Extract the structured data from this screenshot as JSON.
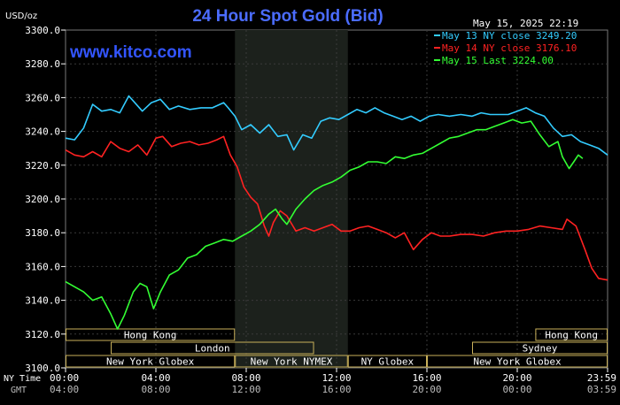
{
  "chart_data": {
    "type": "line",
    "title": "24 Hour Spot Gold (Bid)",
    "ylabel": "USD/oz",
    "timestamp": "May 15, 2025 22:19",
    "watermark": "www.kitco.com",
    "ylim": [
      3100,
      3300
    ],
    "yticks": [
      "3300.0",
      "3280.0",
      "3260.0",
      "3240.0",
      "3220.0",
      "3200.0",
      "3180.0",
      "3160.0",
      "3140.0",
      "3120.0",
      "3100.0"
    ],
    "xlim": [
      0,
      24
    ],
    "ny_time_label": "NY Time",
    "gmt_label": "GMT",
    "xticks_ny": [
      "00:00",
      "04:00",
      "08:00",
      "12:00",
      "16:00",
      "20:00",
      "23:59"
    ],
    "xticks_gmt": [
      "04:00",
      "08:00",
      "12:00",
      "16:00",
      "20:00",
      "00:00",
      "03:59"
    ],
    "shaded_session_hours": [
      7.5,
      12.5
    ],
    "legend_position": "top-right",
    "series": [
      {
        "name": "May 13 NY close 3249.20",
        "color": "#33ccff",
        "points": [
          [
            0,
            3236
          ],
          [
            0.4,
            3235
          ],
          [
            0.8,
            3242
          ],
          [
            1.2,
            3256
          ],
          [
            1.6,
            3252
          ],
          [
            2.0,
            3253
          ],
          [
            2.4,
            3251
          ],
          [
            2.8,
            3261
          ],
          [
            3.0,
            3258
          ],
          [
            3.4,
            3252
          ],
          [
            3.8,
            3257
          ],
          [
            4.2,
            3259
          ],
          [
            4.6,
            3253
          ],
          [
            5.0,
            3255
          ],
          [
            5.5,
            3253
          ],
          [
            6.0,
            3254
          ],
          [
            6.5,
            3254
          ],
          [
            7.0,
            3257
          ],
          [
            7.2,
            3254
          ],
          [
            7.5,
            3249
          ],
          [
            7.8,
            3241
          ],
          [
            8.2,
            3244
          ],
          [
            8.6,
            3239
          ],
          [
            9.0,
            3244
          ],
          [
            9.4,
            3237
          ],
          [
            9.8,
            3238
          ],
          [
            10.1,
            3229
          ],
          [
            10.5,
            3238
          ],
          [
            10.9,
            3236
          ],
          [
            11.3,
            3246
          ],
          [
            11.7,
            3248
          ],
          [
            12.1,
            3247
          ],
          [
            12.5,
            3250
          ],
          [
            12.9,
            3253
          ],
          [
            13.3,
            3251
          ],
          [
            13.7,
            3254
          ],
          [
            14.1,
            3251
          ],
          [
            14.5,
            3249
          ],
          [
            14.9,
            3247
          ],
          [
            15.3,
            3249
          ],
          [
            15.7,
            3246
          ],
          [
            16.1,
            3249
          ],
          [
            16.5,
            3250
          ],
          [
            17.0,
            3249
          ],
          [
            17.5,
            3250
          ],
          [
            18.0,
            3249
          ],
          [
            18.4,
            3251
          ],
          [
            18.8,
            3250
          ],
          [
            19.2,
            3250
          ],
          [
            19.6,
            3250
          ],
          [
            20.0,
            3252
          ],
          [
            20.4,
            3254
          ],
          [
            20.8,
            3251
          ],
          [
            21.2,
            3249
          ],
          [
            21.6,
            3242
          ],
          [
            22.0,
            3237
          ],
          [
            22.4,
            3238
          ],
          [
            22.8,
            3234
          ],
          [
            23.2,
            3232
          ],
          [
            23.6,
            3230
          ],
          [
            24.0,
            3226
          ]
        ]
      },
      {
        "name": "May 14 NY close 3176.10",
        "color": "#ff2222",
        "points": [
          [
            0,
            3229
          ],
          [
            0.4,
            3226
          ],
          [
            0.8,
            3225
          ],
          [
            1.2,
            3228
          ],
          [
            1.6,
            3225
          ],
          [
            2.0,
            3234
          ],
          [
            2.4,
            3230
          ],
          [
            2.8,
            3228
          ],
          [
            3.2,
            3232
          ],
          [
            3.6,
            3226
          ],
          [
            4.0,
            3236
          ],
          [
            4.3,
            3237
          ],
          [
            4.7,
            3231
          ],
          [
            5.1,
            3233
          ],
          [
            5.5,
            3234
          ],
          [
            5.9,
            3232
          ],
          [
            6.3,
            3233
          ],
          [
            6.7,
            3235
          ],
          [
            7.0,
            3237
          ],
          [
            7.3,
            3226
          ],
          [
            7.6,
            3219
          ],
          [
            7.9,
            3207
          ],
          [
            8.2,
            3201
          ],
          [
            8.5,
            3197
          ],
          [
            8.8,
            3184
          ],
          [
            9.0,
            3178
          ],
          [
            9.2,
            3186
          ],
          [
            9.5,
            3193
          ],
          [
            9.8,
            3190
          ],
          [
            10.2,
            3181
          ],
          [
            10.6,
            3183
          ],
          [
            11.0,
            3181
          ],
          [
            11.4,
            3183
          ],
          [
            11.8,
            3185
          ],
          [
            12.2,
            3181
          ],
          [
            12.6,
            3181
          ],
          [
            13.0,
            3183
          ],
          [
            13.4,
            3184
          ],
          [
            13.8,
            3182
          ],
          [
            14.2,
            3180
          ],
          [
            14.6,
            3177
          ],
          [
            15.0,
            3180
          ],
          [
            15.4,
            3170
          ],
          [
            15.8,
            3176
          ],
          [
            16.2,
            3180
          ],
          [
            16.6,
            3178
          ],
          [
            17.0,
            3178
          ],
          [
            17.5,
            3179
          ],
          [
            18.0,
            3179
          ],
          [
            18.5,
            3178
          ],
          [
            19.0,
            3180
          ],
          [
            19.5,
            3181
          ],
          [
            20.0,
            3181
          ],
          [
            20.5,
            3182
          ],
          [
            21.0,
            3184
          ],
          [
            21.5,
            3183
          ],
          [
            22.0,
            3182
          ],
          [
            22.2,
            3188
          ],
          [
            22.6,
            3184
          ],
          [
            23.0,
            3170
          ],
          [
            23.3,
            3159
          ],
          [
            23.6,
            3153
          ],
          [
            24.0,
            3152
          ]
        ]
      },
      {
        "name": "May 15 Last 3224.00",
        "color": "#33ff33",
        "points": [
          [
            0,
            3151
          ],
          [
            0.4,
            3148
          ],
          [
            0.8,
            3145
          ],
          [
            1.2,
            3140
          ],
          [
            1.6,
            3142
          ],
          [
            2.0,
            3132
          ],
          [
            2.3,
            3123
          ],
          [
            2.6,
            3131
          ],
          [
            3.0,
            3145
          ],
          [
            3.3,
            3150
          ],
          [
            3.6,
            3148
          ],
          [
            3.9,
            3135
          ],
          [
            4.2,
            3145
          ],
          [
            4.6,
            3155
          ],
          [
            5.0,
            3158
          ],
          [
            5.4,
            3165
          ],
          [
            5.8,
            3167
          ],
          [
            6.2,
            3172
          ],
          [
            6.6,
            3174
          ],
          [
            7.0,
            3176
          ],
          [
            7.4,
            3175
          ],
          [
            7.8,
            3178
          ],
          [
            8.2,
            3181
          ],
          [
            8.6,
            3185
          ],
          [
            9.0,
            3191
          ],
          [
            9.3,
            3194
          ],
          [
            9.6,
            3188
          ],
          [
            9.8,
            3185
          ],
          [
            10.2,
            3194
          ],
          [
            10.6,
            3200
          ],
          [
            11.0,
            3205
          ],
          [
            11.4,
            3208
          ],
          [
            11.8,
            3210
          ],
          [
            12.2,
            3213
          ],
          [
            12.6,
            3217
          ],
          [
            13.0,
            3219
          ],
          [
            13.4,
            3222
          ],
          [
            13.8,
            3222
          ],
          [
            14.2,
            3221
          ],
          [
            14.6,
            3225
          ],
          [
            15.0,
            3224
          ],
          [
            15.4,
            3226
          ],
          [
            15.8,
            3227
          ],
          [
            16.2,
            3230
          ],
          [
            16.6,
            3233
          ],
          [
            17.0,
            3236
          ],
          [
            17.4,
            3237
          ],
          [
            17.8,
            3239
          ],
          [
            18.2,
            3241
          ],
          [
            18.6,
            3241
          ],
          [
            19.0,
            3243
          ],
          [
            19.4,
            3245
          ],
          [
            19.8,
            3247
          ],
          [
            20.2,
            3245
          ],
          [
            20.6,
            3246
          ],
          [
            21.0,
            3238
          ],
          [
            21.4,
            3231
          ],
          [
            21.8,
            3234
          ],
          [
            22.0,
            3225
          ],
          [
            22.3,
            3218
          ],
          [
            22.5,
            3222
          ],
          [
            22.7,
            3226
          ],
          [
            22.9,
            3224
          ]
        ]
      }
    ]
  },
  "sessions": [
    {
      "label": "Hong Kong",
      "row": 0,
      "start": 0.0,
      "end": 7.5
    },
    {
      "label": "Hong Kong",
      "row": 0,
      "start": 20.8,
      "end": 24.0
    },
    {
      "label": "London",
      "row": 1,
      "start": 2.0,
      "end": 11.0
    },
    {
      "label": "Sydney",
      "row": 1,
      "start": 18.0,
      "end": 24.0
    },
    {
      "label": "New York Globex",
      "row": 2,
      "start": 0.0,
      "end": 7.5
    },
    {
      "label": "New York NYMEX",
      "row": 2,
      "start": 7.5,
      "end": 12.5
    },
    {
      "label": "NY Globex",
      "row": 2,
      "start": 12.5,
      "end": 16.0
    },
    {
      "label": "New York Globex",
      "row": 2,
      "start": 16.0,
      "end": 24.0
    }
  ],
  "colors": {
    "background": "#000000",
    "shade": "#1c211c",
    "grid": "#3a3a3a",
    "title": "#4b6cff",
    "axis_text": "#ffffff",
    "session": "#c9b15a"
  }
}
